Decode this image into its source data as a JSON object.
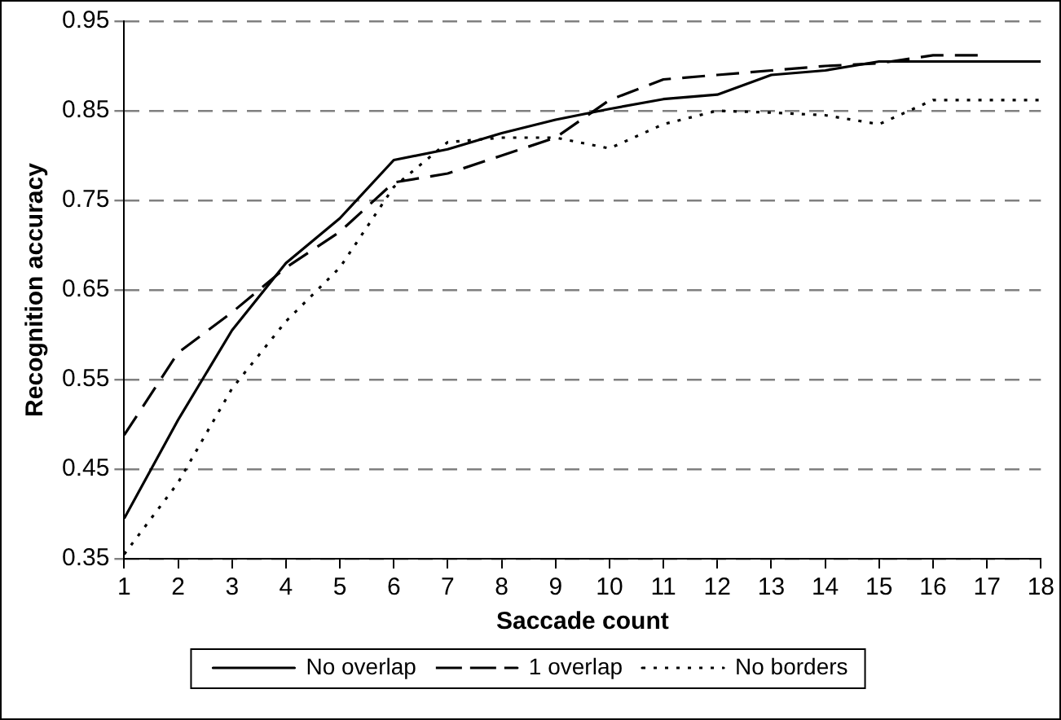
{
  "chart_data": {
    "type": "line",
    "xlabel": "Saccade count",
    "ylabel": "Recognition accuracy",
    "x": [
      1,
      2,
      3,
      4,
      5,
      6,
      7,
      8,
      9,
      10,
      11,
      12,
      13,
      14,
      15,
      16,
      17,
      18
    ],
    "xlim": [
      1,
      18
    ],
    "xticks": [
      1,
      2,
      3,
      4,
      5,
      6,
      7,
      8,
      9,
      10,
      11,
      12,
      13,
      14,
      15,
      16,
      17,
      18
    ],
    "ylim": [
      0.35,
      0.95
    ],
    "yticks": [
      0.35,
      0.45,
      0.55,
      0.65,
      0.75,
      0.85,
      0.95
    ],
    "grid": "y",
    "legend": "bottom",
    "marker": "none",
    "series": [
      {
        "name": "No overlap",
        "color": "#000000",
        "line_style": "solid",
        "values": [
          0.395,
          0.505,
          0.605,
          0.68,
          0.73,
          0.795,
          0.807,
          0.825,
          0.84,
          0.852,
          0.863,
          0.868,
          0.89,
          0.895,
          0.905,
          0.905,
          0.905,
          0.905
        ]
      },
      {
        "name": "1 overlap",
        "color": "#000000",
        "line_style": "dashed",
        "values": [
          0.488,
          0.58,
          0.625,
          0.675,
          0.715,
          0.77,
          0.78,
          0.8,
          0.82,
          0.862,
          0.885,
          0.89,
          0.895,
          0.9,
          0.903,
          0.912,
          0.912,
          null
        ]
      },
      {
        "name": "No borders",
        "color": "#000000",
        "line_style": "dotted",
        "values": [
          0.355,
          0.435,
          0.54,
          0.615,
          0.675,
          0.765,
          0.815,
          0.82,
          0.82,
          0.808,
          0.835,
          0.85,
          0.848,
          0.845,
          0.835,
          0.862,
          0.862,
          0.862
        ]
      }
    ]
  }
}
